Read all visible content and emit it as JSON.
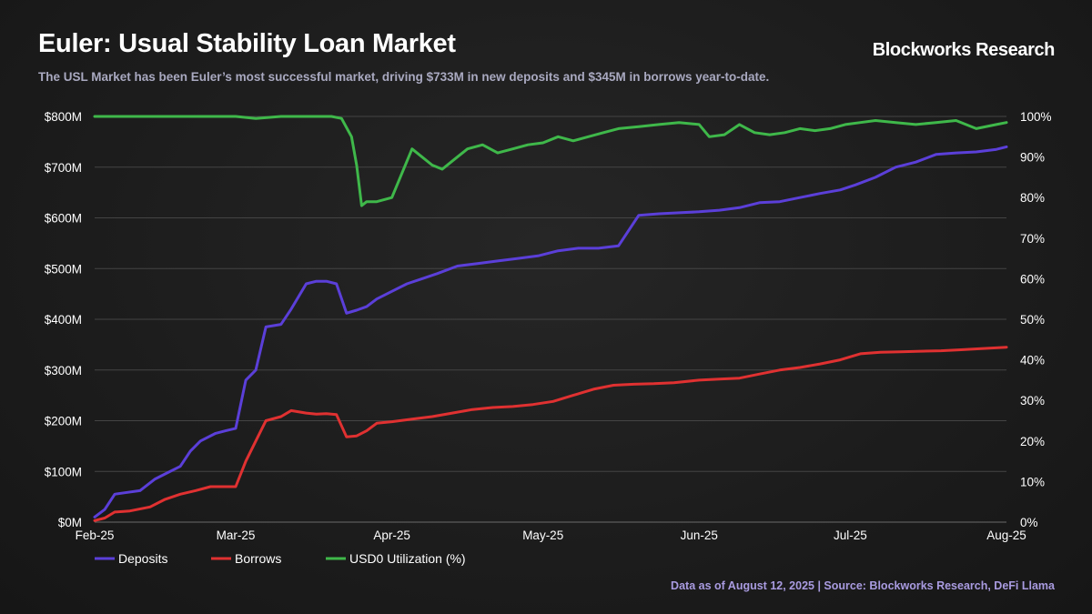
{
  "header": {
    "title": "Euler: Usual Stability Loan Market",
    "brand": "Blockworks Research",
    "subtitle": "The USL Market has been Euler’s most successful market, driving $733M in new deposits and $345M in borrows year-to-date."
  },
  "footer": {
    "source": "Data as of August 12, 2025 | Source: Blockworks Research, DeFi Llama"
  },
  "chart_data": {
    "type": "line",
    "title": "Euler: Usual Stability Loan Market",
    "x_tick_labels": [
      "Feb-25",
      "Mar-25",
      "Apr-25",
      "May-25",
      "Jun-25",
      "Jul-25",
      "Aug-25"
    ],
    "x_tick_dates": [
      "2025-02-01",
      "2025-03-01",
      "2025-04-01",
      "2025-05-01",
      "2025-06-01",
      "2025-07-01",
      "2025-08-01"
    ],
    "xlim": [
      "2025-02-01",
      "2025-08-01"
    ],
    "y_left": {
      "ticks": [
        "$0M",
        "$100M",
        "$200M",
        "$300M",
        "$400M",
        "$500M",
        "$600M",
        "$700M",
        "$800M"
      ],
      "range": [
        0,
        800
      ],
      "unit": "$M"
    },
    "y_right": {
      "ticks": [
        "0%",
        "10%",
        "20%",
        "30%",
        "40%",
        "50%",
        "60%",
        "70%",
        "80%",
        "90%",
        "100%"
      ],
      "range": [
        0,
        100
      ],
      "unit": "%"
    },
    "grid": "horizontal",
    "legend_position": "bottom-left",
    "series": [
      {
        "name": "Deposits",
        "axis": "left",
        "color": "#5b3fd9",
        "x": [
          "2025-02-01",
          "2025-02-03",
          "2025-02-05",
          "2025-02-07",
          "2025-02-10",
          "2025-02-13",
          "2025-02-15",
          "2025-02-18",
          "2025-02-20",
          "2025-02-22",
          "2025-02-25",
          "2025-02-27",
          "2025-03-01",
          "2025-03-03",
          "2025-03-05",
          "2025-03-07",
          "2025-03-10",
          "2025-03-12",
          "2025-03-15",
          "2025-03-17",
          "2025-03-19",
          "2025-03-21",
          "2025-03-23",
          "2025-03-25",
          "2025-03-27",
          "2025-03-29",
          "2025-04-01",
          "2025-04-04",
          "2025-04-07",
          "2025-04-10",
          "2025-04-14",
          "2025-04-18",
          "2025-04-22",
          "2025-04-26",
          "2025-04-30",
          "2025-05-04",
          "2025-05-08",
          "2025-05-12",
          "2025-05-16",
          "2025-05-20",
          "2025-05-24",
          "2025-05-28",
          "2025-06-01",
          "2025-06-05",
          "2025-06-09",
          "2025-06-13",
          "2025-06-17",
          "2025-06-21",
          "2025-06-25",
          "2025-06-29",
          "2025-07-02",
          "2025-07-06",
          "2025-07-10",
          "2025-07-14",
          "2025-07-18",
          "2025-07-22",
          "2025-07-26",
          "2025-07-30",
          "2025-08-01"
        ],
        "values": [
          10,
          25,
          55,
          58,
          62,
          85,
          95,
          110,
          140,
          160,
          175,
          180,
          185,
          280,
          300,
          385,
          390,
          420,
          470,
          475,
          475,
          470,
          412,
          418,
          425,
          440,
          455,
          470,
          480,
          490,
          505,
          510,
          515,
          520,
          525,
          535,
          540,
          540,
          545,
          605,
          608,
          610,
          612,
          615,
          620,
          630,
          632,
          640,
          648,
          655,
          665,
          680,
          700,
          710,
          725,
          728,
          730,
          735,
          740
        ]
      },
      {
        "name": "Borrows",
        "axis": "left",
        "color": "#e03131",
        "x": [
          "2025-02-01",
          "2025-02-03",
          "2025-02-05",
          "2025-02-08",
          "2025-02-12",
          "2025-02-15",
          "2025-02-18",
          "2025-02-21",
          "2025-02-24",
          "2025-02-27",
          "2025-03-01",
          "2025-03-03",
          "2025-03-05",
          "2025-03-07",
          "2025-03-10",
          "2025-03-12",
          "2025-03-15",
          "2025-03-17",
          "2025-03-19",
          "2025-03-21",
          "2025-03-23",
          "2025-03-25",
          "2025-03-27",
          "2025-03-29",
          "2025-04-01",
          "2025-04-05",
          "2025-04-09",
          "2025-04-13",
          "2025-04-17",
          "2025-04-21",
          "2025-04-25",
          "2025-04-29",
          "2025-05-03",
          "2025-05-07",
          "2025-05-11",
          "2025-05-15",
          "2025-05-19",
          "2025-05-23",
          "2025-05-27",
          "2025-06-01",
          "2025-06-05",
          "2025-06-09",
          "2025-06-13",
          "2025-06-17",
          "2025-06-21",
          "2025-06-25",
          "2025-06-29",
          "2025-07-03",
          "2025-07-07",
          "2025-07-11",
          "2025-07-15",
          "2025-07-19",
          "2025-07-23",
          "2025-07-27",
          "2025-08-01"
        ],
        "values": [
          3,
          8,
          20,
          22,
          30,
          45,
          55,
          62,
          70,
          70,
          70,
          120,
          160,
          200,
          208,
          220,
          215,
          213,
          214,
          212,
          168,
          170,
          180,
          195,
          198,
          203,
          208,
          215,
          222,
          226,
          228,
          232,
          238,
          250,
          262,
          270,
          272,
          273,
          275,
          280,
          282,
          284,
          292,
          300,
          305,
          312,
          320,
          332,
          335,
          336,
          337,
          338,
          340,
          342,
          345
        ]
      },
      {
        "name": "USD0 Utilization (%)",
        "axis": "right",
        "color": "#3fb84a",
        "x": [
          "2025-02-01",
          "2025-02-10",
          "2025-02-20",
          "2025-03-01",
          "2025-03-05",
          "2025-03-10",
          "2025-03-15",
          "2025-03-20",
          "2025-03-22",
          "2025-03-24",
          "2025-03-25",
          "2025-03-26",
          "2025-03-27",
          "2025-03-29",
          "2025-04-01",
          "2025-04-03",
          "2025-04-05",
          "2025-04-07",
          "2025-04-09",
          "2025-04-11",
          "2025-04-13",
          "2025-04-16",
          "2025-04-19",
          "2025-04-22",
          "2025-04-25",
          "2025-04-28",
          "2025-05-01",
          "2025-05-04",
          "2025-05-07",
          "2025-05-10",
          "2025-05-13",
          "2025-05-16",
          "2025-05-20",
          "2025-05-24",
          "2025-05-28",
          "2025-06-01",
          "2025-06-03",
          "2025-06-06",
          "2025-06-09",
          "2025-06-12",
          "2025-06-15",
          "2025-06-18",
          "2025-06-21",
          "2025-06-24",
          "2025-06-27",
          "2025-06-30",
          "2025-07-03",
          "2025-07-06",
          "2025-07-10",
          "2025-07-14",
          "2025-07-18",
          "2025-07-22",
          "2025-07-26",
          "2025-07-30",
          "2025-08-01"
        ],
        "values": [
          100,
          100,
          100,
          100,
          99.5,
          100,
          100,
          100,
          99.5,
          95,
          88,
          78,
          79,
          79,
          80,
          86,
          92,
          90,
          88,
          87,
          89,
          92,
          93,
          91,
          92,
          93,
          93.5,
          95,
          94,
          95,
          96,
          97,
          97.5,
          98,
          98.5,
          98,
          95,
          95.5,
          98,
          96,
          95.5,
          96,
          97,
          96.5,
          97,
          98,
          98.5,
          99,
          98.5,
          98,
          98.5,
          99,
          97,
          98,
          98.5
        ]
      }
    ]
  }
}
